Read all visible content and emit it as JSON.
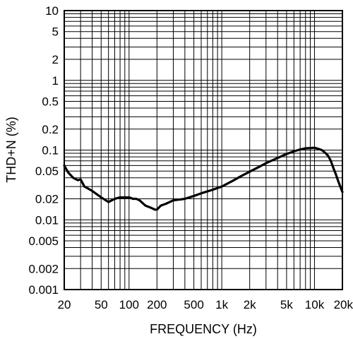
{
  "chart_data": {
    "type": "line",
    "title": "",
    "xlabel": "FREQUENCY (Hz)",
    "ylabel": "THD+N (%)",
    "x_scale": "log",
    "y_scale": "log",
    "xlim": [
      20,
      20000
    ],
    "ylim": [
      0.001,
      10
    ],
    "grid": true,
    "x_ticks": [
      {
        "value": 20,
        "label": "20"
      },
      {
        "value": 50,
        "label": "50"
      },
      {
        "value": 100,
        "label": "100"
      },
      {
        "value": 200,
        "label": "200"
      },
      {
        "value": 500,
        "label": "500"
      },
      {
        "value": 1000,
        "label": "1k"
      },
      {
        "value": 2000,
        "label": "2k"
      },
      {
        "value": 5000,
        "label": "5k"
      },
      {
        "value": 10000,
        "label": "10k"
      },
      {
        "value": 20000,
        "label": "20k"
      }
    ],
    "y_ticks": [
      {
        "value": 10,
        "label": "10"
      },
      {
        "value": 5,
        "label": "5"
      },
      {
        "value": 2,
        "label": "2"
      },
      {
        "value": 1,
        "label": "1"
      },
      {
        "value": 0.5,
        "label": "0.5"
      },
      {
        "value": 0.2,
        "label": "0.2"
      },
      {
        "value": 0.1,
        "label": "0.1"
      },
      {
        "value": 0.05,
        "label": "0.05"
      },
      {
        "value": 0.02,
        "label": "0.02"
      },
      {
        "value": 0.01,
        "label": "0.01"
      },
      {
        "value": 0.005,
        "label": "0.005"
      },
      {
        "value": 0.002,
        "label": "0.002"
      },
      {
        "value": 0.001,
        "label": "0.001"
      }
    ],
    "series": [
      {
        "color": "#000000",
        "x": [
          20,
          22,
          25,
          28,
          30,
          33,
          40,
          50,
          60,
          70,
          80,
          90,
          100,
          110,
          120,
          130,
          150,
          170,
          190,
          200,
          220,
          250,
          300,
          400,
          500,
          600,
          800,
          1000,
          1300,
          1600,
          2000,
          2500,
          3000,
          4000,
          5000,
          6000,
          7000,
          8000,
          9000,
          10000,
          11000,
          12000,
          13000,
          14000,
          15000,
          16000,
          17000,
          18000,
          20000
        ],
        "y": [
          0.06,
          0.048,
          0.04,
          0.037,
          0.038,
          0.03,
          0.026,
          0.021,
          0.018,
          0.02,
          0.021,
          0.021,
          0.021,
          0.02,
          0.02,
          0.019,
          0.016,
          0.015,
          0.014,
          0.014,
          0.016,
          0.017,
          0.019,
          0.02,
          0.022,
          0.024,
          0.027,
          0.03,
          0.036,
          0.042,
          0.049,
          0.057,
          0.065,
          0.077,
          0.088,
          0.096,
          0.102,
          0.106,
          0.107,
          0.108,
          0.104,
          0.1,
          0.092,
          0.083,
          0.07,
          0.055,
          0.045,
          0.036,
          0.025
        ]
      }
    ]
  }
}
